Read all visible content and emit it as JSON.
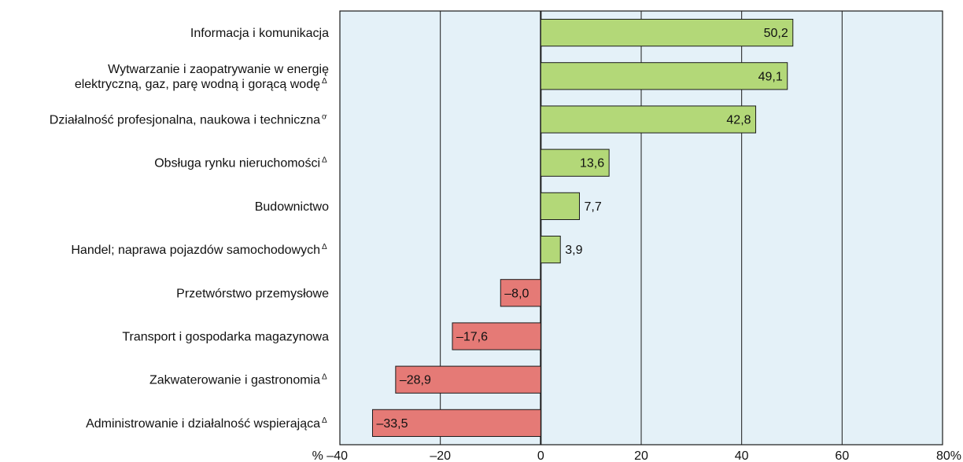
{
  "chart_data": {
    "type": "bar",
    "orientation": "horizontal",
    "categories": [
      {
        "label": [
          "Informacja i komunikacja"
        ],
        "note": ""
      },
      {
        "label": [
          "Wytwarzanie i zaopatrywanie w energię",
          "elektryczną, gaz, parę wodną i gorącą wodę"
        ],
        "note": "Δ"
      },
      {
        "label": [
          "Działalność profesjonalna, naukowa i techniczna"
        ],
        "note": "ơ"
      },
      {
        "label": [
          "Obsługa rynku nieruchomości"
        ],
        "note": "Δ"
      },
      {
        "label": [
          "Budownictwo"
        ],
        "note": ""
      },
      {
        "label": [
          "Handel; naprawa pojazdów samochodowych"
        ],
        "note": "Δ"
      },
      {
        "label": [
          "Przetwórstwo przemysłowe"
        ],
        "note": ""
      },
      {
        "label": [
          "Transport i gospodarka magazynowa"
        ],
        "note": ""
      },
      {
        "label": [
          "Zakwaterowanie i gastronomia"
        ],
        "note": "Δ"
      },
      {
        "label": [
          "Administrowanie i działalność wspierająca"
        ],
        "note": "Δ"
      }
    ],
    "values": [
      50.2,
      49.1,
      42.8,
      13.6,
      7.7,
      3.9,
      -8.0,
      -17.6,
      -28.9,
      -33.5
    ],
    "value_labels": [
      "50,2",
      "49,1",
      "42,8",
      "13,6",
      "7,7",
      "3,9",
      "–8,0",
      "–17,6",
      "–28,9",
      "–33,5"
    ],
    "xlim": [
      -40,
      80
    ],
    "xticks": [
      -40,
      -20,
      0,
      20,
      40,
      60,
      80
    ],
    "xtick_labels": [
      "% –40",
      "–20",
      "0",
      "20",
      "40",
      "60",
      "80%"
    ],
    "grid": true,
    "colors": {
      "positive": "#b3d878",
      "negative": "#e57a76",
      "plot_background": "#e4f1f8",
      "bar_border": "#1a1a1a",
      "grid": "#1a1a1a"
    }
  }
}
